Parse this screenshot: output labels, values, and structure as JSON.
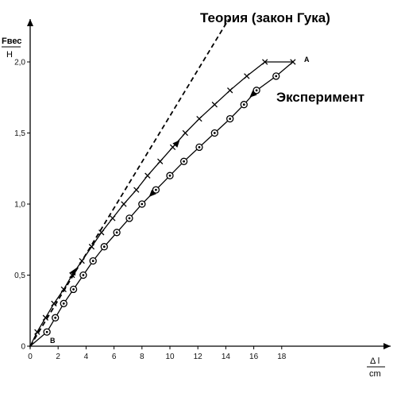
{
  "chart_data": {
    "type": "line",
    "ylabel_top": "Fвес",
    "ylabel_bottom": "Н",
    "xlabel_top": "Δ l",
    "xlabel_bottom": "cm",
    "xlim": [
      0,
      20
    ],
    "ylim": [
      0,
      2.1
    ],
    "x_ticks": [
      "0",
      "2",
      "4",
      "6",
      "8",
      "10",
      "12",
      "14",
      "16",
      "18"
    ],
    "y_ticks": [
      "0",
      "0,5",
      "1,0",
      "1,5",
      "2,0"
    ],
    "grid": false,
    "annotations": {
      "theory": "Теория (закон Гука)",
      "experiment": "Эксперимент",
      "point_a": "A",
      "point_b": "B"
    },
    "series": [
      {
        "name": "Теория (закон Гука)",
        "style": "dashed",
        "x": [
          0,
          14.2
        ],
        "y": [
          0,
          2.3
        ]
      },
      {
        "style": "solid, cross markers (loading)",
        "x": [
          0.5,
          1.1,
          1.7,
          2.4,
          3.0,
          3.7,
          4.4,
          5.1,
          5.9,
          6.7,
          7.6,
          8.4,
          9.3,
          10.2,
          11.1,
          12.1,
          13.2,
          14.3,
          15.5,
          16.8,
          18.8
        ],
        "y": [
          0.1,
          0.2,
          0.3,
          0.4,
          0.5,
          0.6,
          0.7,
          0.8,
          0.9,
          1.0,
          1.1,
          1.2,
          1.3,
          1.4,
          1.5,
          1.6,
          1.7,
          1.8,
          1.9,
          2.0,
          2.0
        ]
      },
      {
        "style": "solid, circle markers (unloading)",
        "x": [
          1.2,
          1.8,
          2.4,
          3.1,
          3.8,
          4.5,
          5.3,
          6.2,
          7.1,
          8.0,
          9.0,
          10.0,
          11.0,
          12.1,
          13.2,
          14.3,
          15.3,
          16.2,
          17.6
        ],
        "y": [
          0.1,
          0.2,
          0.3,
          0.4,
          0.5,
          0.6,
          0.7,
          0.8,
          0.9,
          1.0,
          1.1,
          1.2,
          1.3,
          1.4,
          1.5,
          1.6,
          1.7,
          1.8,
          1.9
        ]
      }
    ]
  }
}
